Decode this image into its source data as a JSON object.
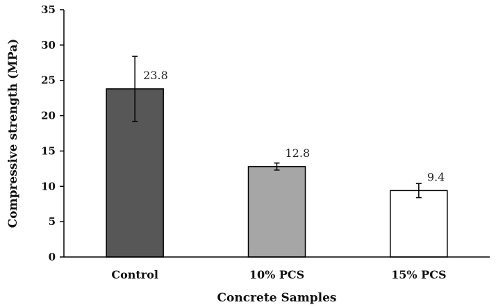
{
  "chart_data": {
    "type": "bar",
    "title": "",
    "xlabel": "Concrete Samples",
    "ylabel": "Compressive strength (MPa)",
    "ylim": [
      0,
      35
    ],
    "yticks": [
      0,
      5,
      10,
      15,
      20,
      25,
      30,
      35
    ],
    "categories": [
      "Control",
      "10% PCS",
      "15% PCS"
    ],
    "values": [
      23.8,
      12.8,
      9.4
    ],
    "error": [
      4.6,
      0.5,
      1.0
    ],
    "data_labels": [
      "23.8",
      "12.8",
      "9.4"
    ],
    "bar_colors": [
      "#575757",
      "#a6a6a6",
      "#ffffff"
    ],
    "bar_edge_color": "#000000",
    "grid": false,
    "legend": "none"
  }
}
